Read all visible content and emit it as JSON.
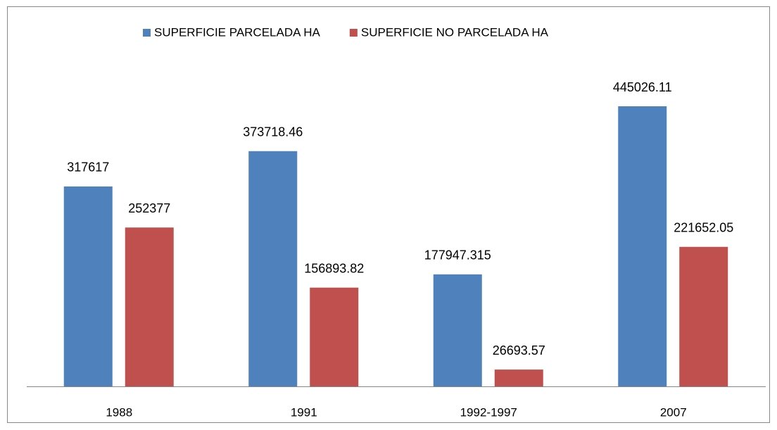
{
  "chart_data": {
    "type": "bar",
    "categories": [
      "1988",
      "1991",
      "1992-1997",
      "2007"
    ],
    "series": [
      {
        "name": "SUPERFICIE PARCELADA HA",
        "color": "#4f81bd",
        "values": [
          317617,
          373718.46,
          177947.315,
          445026.11
        ]
      },
      {
        "name": "SUPERFICIE NO PARCELADA HA",
        "color": "#c0504d",
        "values": [
          252377,
          156893.82,
          26693.57,
          221652.05
        ]
      }
    ],
    "legend": "top",
    "data_labels": true
  }
}
